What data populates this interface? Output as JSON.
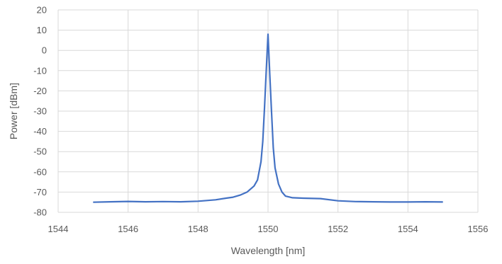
{
  "chart_data": {
    "type": "line",
    "xlabel": "Wavelength [nm]",
    "ylabel": "Power [dBm]",
    "xlim": [
      1544,
      1556
    ],
    "ylim": [
      -80,
      20
    ],
    "xticks": [
      1544,
      1546,
      1548,
      1550,
      1552,
      1554,
      1556
    ],
    "yticks": [
      20,
      10,
      0,
      -10,
      -20,
      -30,
      -40,
      -50,
      -60,
      -70,
      -80
    ],
    "grid": true,
    "legend": "none",
    "colors": {
      "series": "#4472c4",
      "grid": "#d9d9d9",
      "text": "#595959"
    },
    "series": [
      {
        "x": [
          1545.0,
          1545.5,
          1546.0,
          1546.5,
          1547.0,
          1547.5,
          1548.0,
          1548.5,
          1548.8,
          1549.0,
          1549.2,
          1549.4,
          1549.6,
          1549.7,
          1549.8,
          1549.85,
          1549.9,
          1549.95,
          1550.0,
          1550.05,
          1550.1,
          1550.15,
          1550.2,
          1550.3,
          1550.4,
          1550.5,
          1550.7,
          1551.0,
          1551.5,
          1552.0,
          1552.5,
          1553.0,
          1553.5,
          1554.0,
          1554.5,
          1555.0
        ],
        "y": [
          -75,
          -74.8,
          -74.6,
          -74.8,
          -74.7,
          -74.8,
          -74.5,
          -73.8,
          -73.0,
          -72.5,
          -71.5,
          -70.0,
          -67.0,
          -64.0,
          -55.0,
          -45.0,
          -28.0,
          -10.0,
          8.0,
          -12.0,
          -30.0,
          -48.0,
          -58.0,
          -66.0,
          -70.0,
          -72.0,
          -72.8,
          -73.0,
          -73.2,
          -74.3,
          -74.7,
          -74.8,
          -74.9,
          -74.9,
          -74.8,
          -74.9
        ]
      }
    ]
  }
}
